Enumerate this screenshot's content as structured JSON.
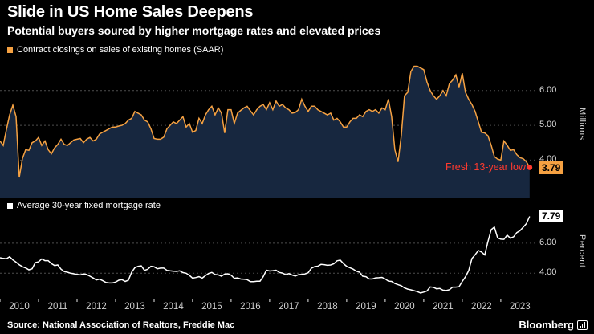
{
  "header": {
    "title": "Slide in US Home Sales Deepens",
    "subtitle": "Potential buyers soured by higher mortgage rates and elevated prices"
  },
  "colors": {
    "background": "#000000",
    "sales_line": "#f5a142",
    "sales_fill": "#17273f",
    "rate_line": "#ffffff",
    "grid": "#4d4d4d",
    "axis_line": "#e8e8e8",
    "axis_text": "#d9d9d9",
    "alert_red": "#ff3a2f"
  },
  "x_axis": {
    "domain": [
      2010.0,
      2023.92
    ],
    "year_labels": [
      "2010",
      "2011",
      "2012",
      "2013",
      "2014",
      "2015",
      "2016",
      "2017",
      "2018",
      "2019",
      "2020",
      "2021",
      "2022",
      "2023"
    ]
  },
  "chart_data": [
    {
      "type": "area",
      "name": "existing-home-sales",
      "legend": "Contract closings on sales of existing homes (SAAR)",
      "unit_label": "Millions",
      "x_start": 2010.0,
      "x_interval": "monthly",
      "ylim": [
        2.9,
        6.85
      ],
      "yticks": [
        4.0,
        5.0,
        6.0
      ],
      "end_label": "3.79",
      "annotation": "Fresh 13-year low",
      "values": [
        4.55,
        4.42,
        4.88,
        5.3,
        5.58,
        5.25,
        3.5,
        4.05,
        4.3,
        4.28,
        4.5,
        4.55,
        4.65,
        4.42,
        4.55,
        4.3,
        4.18,
        4.35,
        4.45,
        4.6,
        4.45,
        4.42,
        4.5,
        4.58,
        4.6,
        4.62,
        4.5,
        4.6,
        4.65,
        4.55,
        4.6,
        4.75,
        4.8,
        4.85,
        4.9,
        4.95,
        4.95,
        4.98,
        5.0,
        5.05,
        5.15,
        5.2,
        5.4,
        5.35,
        5.3,
        5.15,
        5.1,
        4.9,
        4.62,
        4.6,
        4.6,
        4.66,
        4.9,
        5.0,
        5.1,
        5.05,
        5.15,
        5.25,
        4.95,
        5.05,
        4.8,
        4.85,
        5.2,
        5.05,
        5.3,
        5.45,
        5.55,
        5.3,
        5.5,
        5.35,
        4.78,
        5.45,
        5.45,
        5.05,
        5.35,
        5.43,
        5.5,
        5.55,
        5.42,
        5.3,
        5.45,
        5.55,
        5.6,
        5.45,
        5.65,
        5.45,
        5.7,
        5.55,
        5.6,
        5.5,
        5.45,
        5.35,
        5.37,
        5.45,
        5.75,
        5.55,
        5.4,
        5.55,
        5.55,
        5.45,
        5.4,
        5.35,
        5.3,
        5.35,
        5.15,
        5.2,
        5.1,
        4.95,
        4.95,
        5.1,
        5.2,
        5.2,
        5.3,
        5.25,
        5.4,
        5.45,
        5.4,
        5.45,
        5.35,
        5.5,
        5.45,
        5.75,
        5.25,
        4.3,
        3.95,
        4.7,
        5.85,
        5.95,
        6.55,
        6.7,
        6.7,
        6.65,
        6.6,
        6.25,
        6.0,
        5.85,
        5.75,
        5.85,
        6.0,
        5.85,
        6.2,
        6.3,
        6.45,
        6.1,
        6.5,
        5.95,
        5.75,
        5.6,
        5.4,
        5.1,
        4.8,
        4.78,
        4.7,
        4.43,
        4.1,
        4.03,
        4.0,
        4.55,
        4.43,
        4.28,
        4.3,
        4.16,
        4.07,
        4.04,
        3.95,
        3.79
      ]
    },
    {
      "type": "line",
      "name": "mortgage-rate-30yr",
      "legend": "Average 30-year fixed mortgage rate",
      "unit_label": "Percent",
      "x_start": 2010.0,
      "x_interval": "monthly",
      "ylim": [
        2.3,
        8.3
      ],
      "yticks": [
        4.0,
        6.0
      ],
      "end_label": "7.79",
      "values": [
        5.03,
        4.99,
        4.97,
        5.1,
        4.89,
        4.74,
        4.56,
        4.43,
        4.35,
        4.23,
        4.3,
        4.71,
        4.76,
        4.95,
        4.84,
        4.84,
        4.64,
        4.51,
        4.55,
        4.27,
        4.11,
        4.07,
        4.0,
        3.96,
        3.92,
        3.89,
        3.95,
        3.91,
        3.8,
        3.68,
        3.55,
        3.6,
        3.5,
        3.38,
        3.35,
        3.35,
        3.41,
        3.53,
        3.57,
        3.45,
        3.54,
        4.07,
        4.37,
        4.46,
        4.49,
        4.19,
        4.26,
        4.46,
        4.43,
        4.3,
        4.34,
        4.34,
        4.19,
        4.16,
        4.13,
        4.12,
        4.16,
        4.04,
        4.0,
        3.86,
        3.67,
        3.71,
        3.77,
        3.67,
        3.84,
        3.98,
        4.05,
        3.91,
        3.89,
        3.8,
        3.94,
        3.96,
        3.87,
        3.66,
        3.69,
        3.61,
        3.6,
        3.57,
        3.44,
        3.44,
        3.46,
        3.47,
        3.77,
        4.2,
        4.15,
        4.17,
        4.2,
        4.05,
        4.01,
        3.9,
        3.97,
        3.88,
        3.81,
        3.9,
        3.92,
        3.95,
        4.03,
        4.33,
        4.44,
        4.47,
        4.59,
        4.57,
        4.53,
        4.55,
        4.63,
        4.83,
        4.87,
        4.64,
        4.46,
        4.37,
        4.27,
        4.14,
        4.07,
        3.8,
        3.77,
        3.62,
        3.61,
        3.69,
        3.7,
        3.72,
        3.62,
        3.47,
        3.45,
        3.31,
        3.23,
        3.16,
        3.02,
        2.94,
        2.89,
        2.83,
        2.77,
        2.68,
        2.74,
        2.81,
        3.08,
        3.06,
        2.96,
        2.98,
        2.87,
        2.84,
        2.9,
        3.07,
        3.07,
        3.1,
        3.45,
        3.76,
        4.17,
        4.98,
        5.23,
        5.52,
        5.41,
        5.22,
        6.11,
        6.9,
        7.08,
        6.36,
        6.27,
        6.26,
        6.54,
        6.34,
        6.43,
        6.71,
        6.84,
        7.07,
        7.31,
        7.79
      ]
    }
  ],
  "footer": {
    "source": "Source: National Association of Realtors, Freddie Mac",
    "logo": "Bloomberg"
  }
}
